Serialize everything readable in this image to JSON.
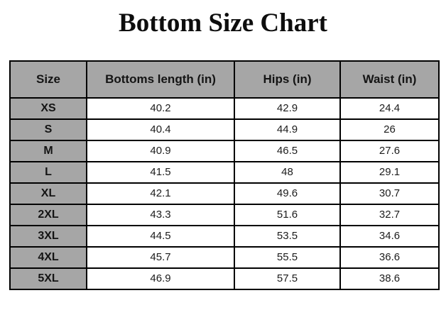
{
  "title": "Bottom Size Chart",
  "table": {
    "header_bg": "#a6a6a6",
    "size_column_bg": "#a6a6a6",
    "border_color": "#000000",
    "columns": [
      "Size",
      "Bottoms length (in)",
      "Hips (in)",
      "Waist (in)"
    ],
    "rows": [
      {
        "size": "XS",
        "values": [
          "40.2",
          "42.9",
          "24.4"
        ]
      },
      {
        "size": "S",
        "values": [
          "40.4",
          "44.9",
          "26"
        ]
      },
      {
        "size": "M",
        "values": [
          "40.9",
          "46.5",
          "27.6"
        ]
      },
      {
        "size": "L",
        "values": [
          "41.5",
          "48",
          "29.1"
        ]
      },
      {
        "size": "XL",
        "values": [
          "42.1",
          "49.6",
          "30.7"
        ]
      },
      {
        "size": "2XL",
        "values": [
          "43.3",
          "51.6",
          "32.7"
        ]
      },
      {
        "size": "3XL",
        "values": [
          "44.5",
          "53.5",
          "34.6"
        ]
      },
      {
        "size": "4XL",
        "values": [
          "45.7",
          "55.5",
          "36.6"
        ]
      },
      {
        "size": "5XL",
        "values": [
          "46.9",
          "57.5",
          "38.6"
        ]
      }
    ]
  },
  "chart_data": {
    "type": "table",
    "title": "Bottom Size Chart",
    "columns": [
      "Size",
      "Bottoms length (in)",
      "Hips (in)",
      "Waist (in)"
    ],
    "rows": [
      [
        "XS",
        40.2,
        42.9,
        24.4
      ],
      [
        "S",
        40.4,
        44.9,
        26
      ],
      [
        "M",
        40.9,
        46.5,
        27.6
      ],
      [
        "L",
        41.5,
        48,
        29.1
      ],
      [
        "XL",
        42.1,
        49.6,
        30.7
      ],
      [
        "2XL",
        43.3,
        51.6,
        32.7
      ],
      [
        "3XL",
        44.5,
        53.5,
        34.6
      ],
      [
        "4XL",
        45.7,
        55.5,
        36.6
      ],
      [
        "5XL",
        46.9,
        57.5,
        38.6
      ]
    ]
  }
}
